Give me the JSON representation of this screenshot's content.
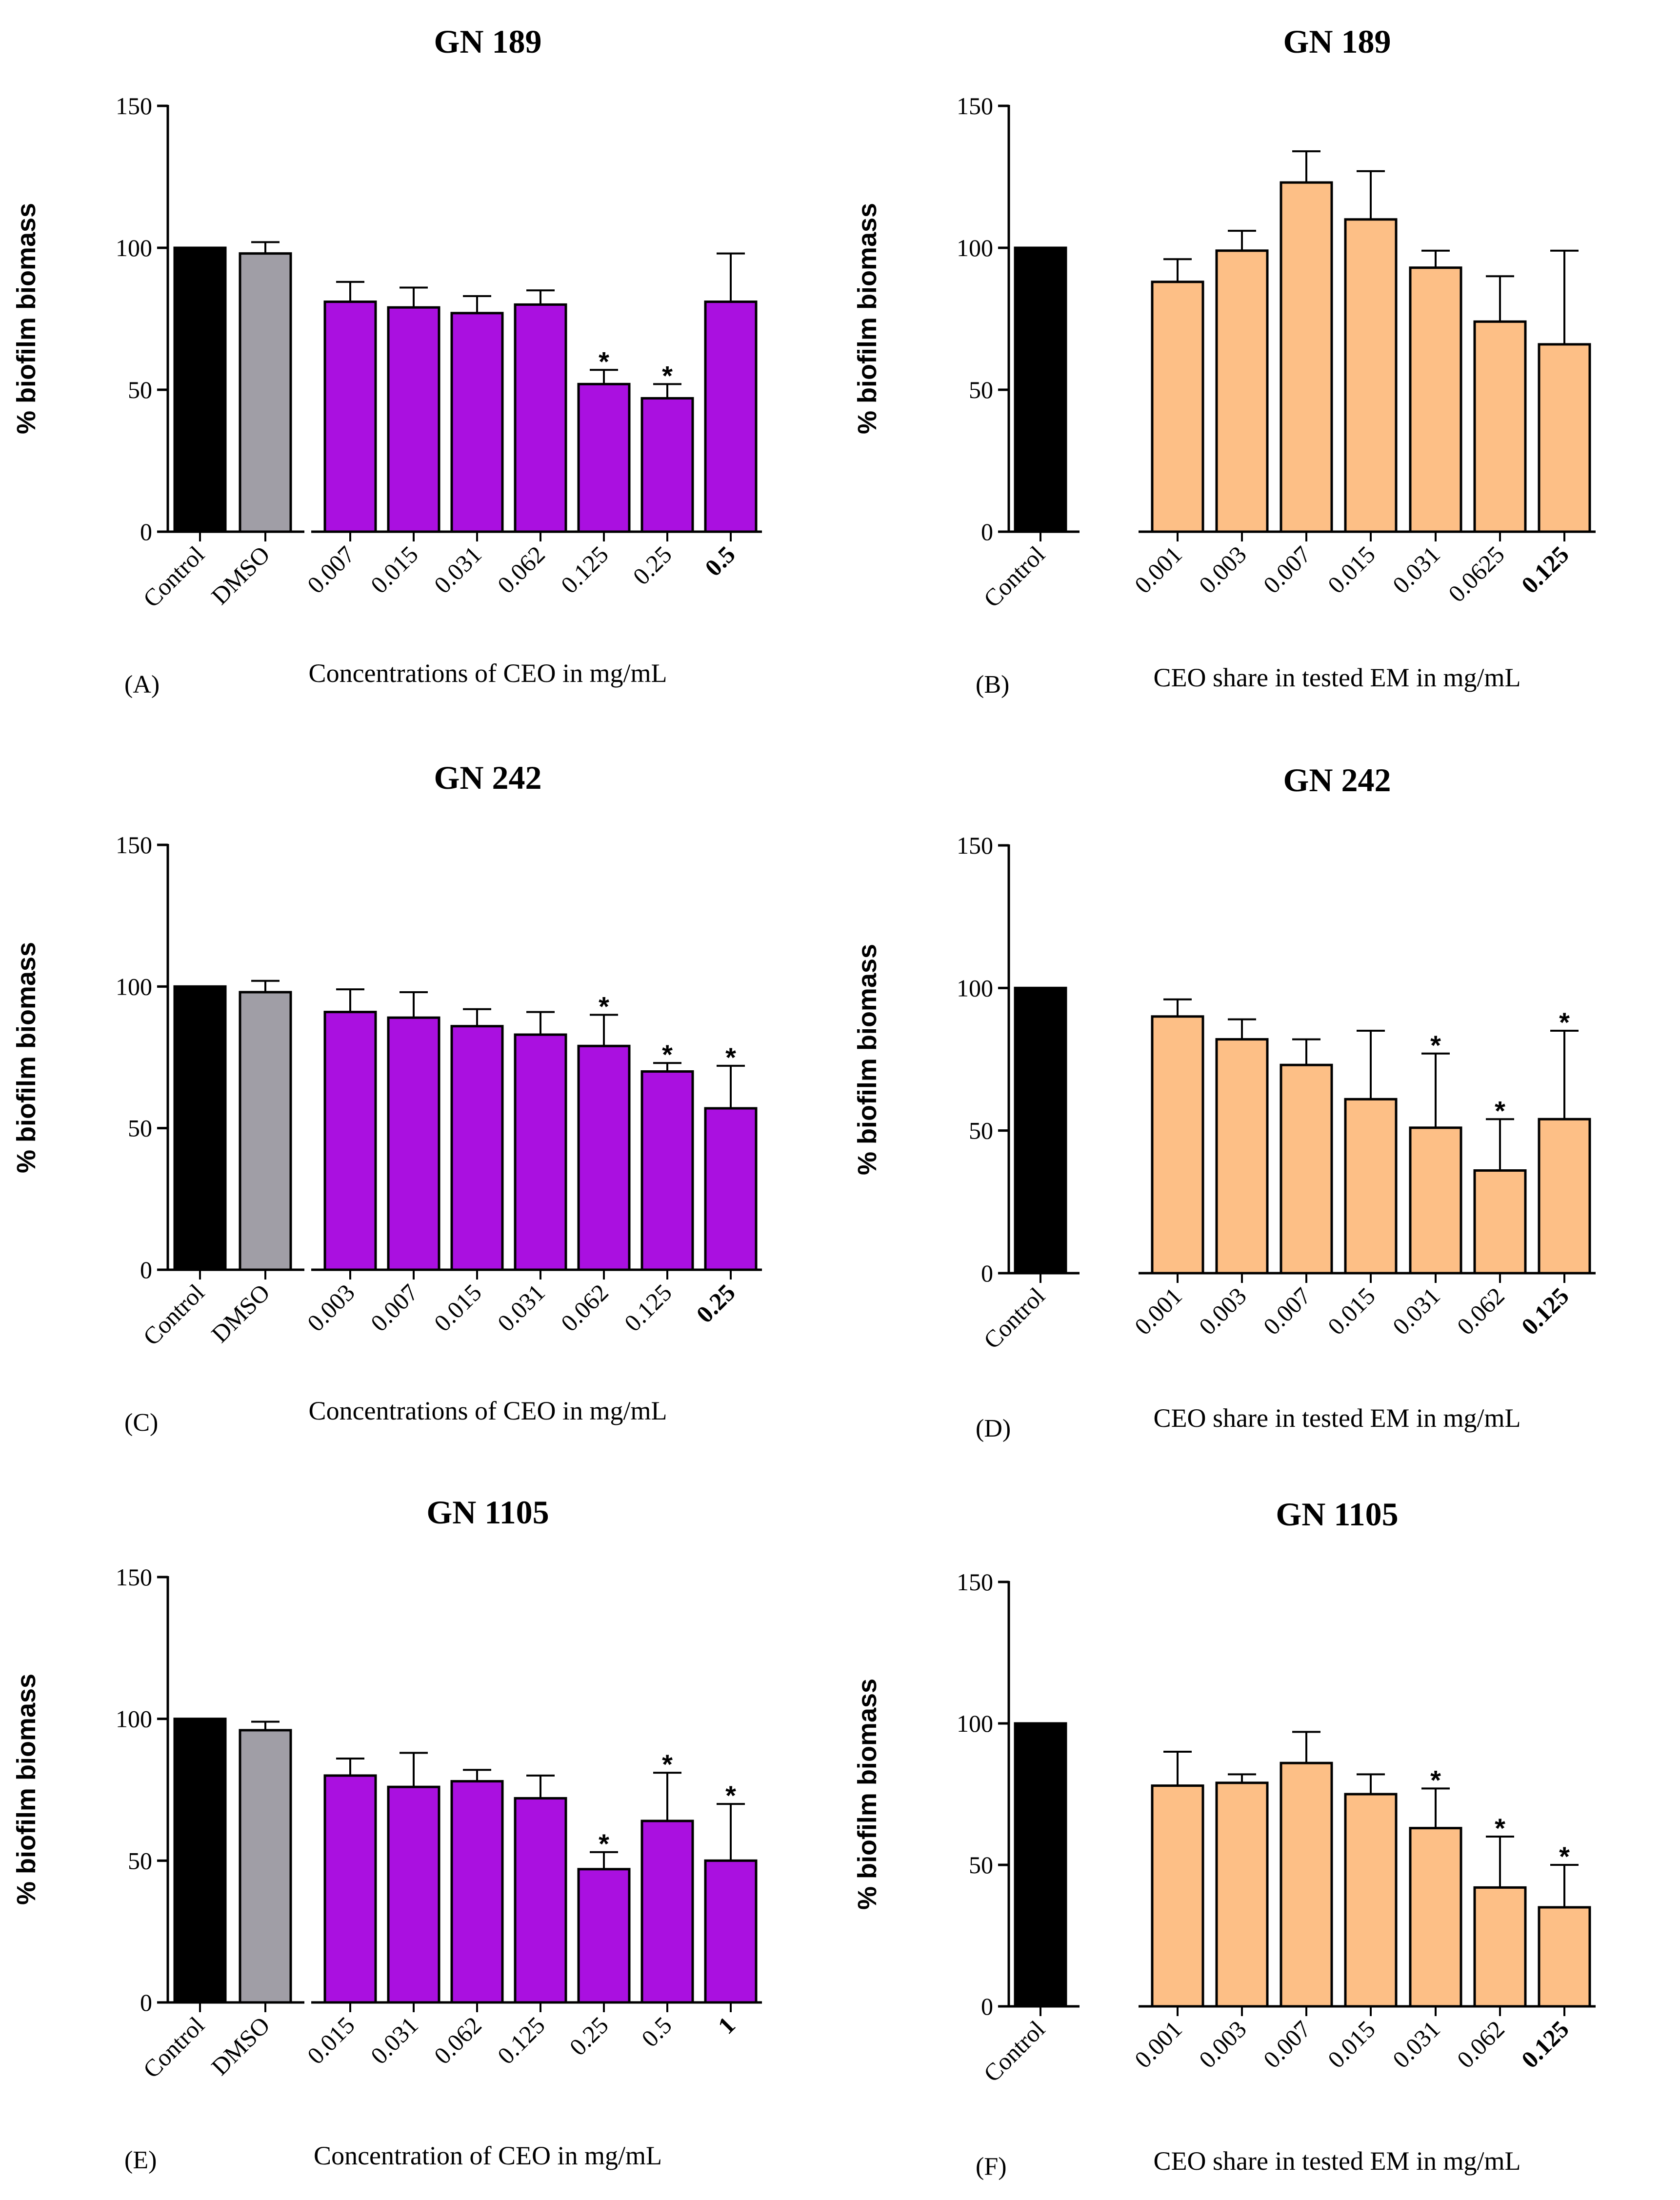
{
  "colors": {
    "control": "#000000",
    "dmso": "#a09ea6",
    "ceo": "#aa10e0",
    "em": "#fdbf86",
    "outline": "#000000"
  },
  "chart_data": [
    {
      "panel_label": "(A)",
      "type": "bar",
      "title": "GN 189",
      "ylabel": "% biofilm biomass",
      "xlabel": "Concentrations of CEO in mg/mL",
      "ylim": [
        0,
        150
      ],
      "yticks": [
        "0",
        "50",
        "100",
        "150"
      ],
      "categories": [
        "Control",
        "DMSO",
        "0.007",
        "0.015",
        "0.031",
        "0.062",
        "0.125",
        "0.25",
        "0.5"
      ],
      "bold_category": "0.5",
      "values": [
        100,
        98,
        81,
        79,
        77,
        80,
        52,
        47,
        81
      ],
      "errors": [
        0,
        4,
        7,
        7,
        6,
        5,
        5,
        5,
        17
      ],
      "significant": [
        "",
        "",
        "",
        "",
        "",
        "",
        "*",
        "*",
        ""
      ]
    },
    {
      "panel_label": "(B)",
      "type": "bar",
      "title": "GN 189",
      "ylabel": "% biofilm biomass",
      "xlabel": "CEO share in tested EM in mg/mL",
      "ylim": [
        0,
        150
      ],
      "yticks": [
        "0",
        "50",
        "100",
        "150"
      ],
      "categories": [
        "Control",
        "0.001",
        "0.003",
        "0.007",
        "0.015",
        "0.031",
        "0.0625",
        "0.125"
      ],
      "bold_category": "0.125",
      "values": [
        100,
        88,
        99,
        123,
        110,
        93,
        74,
        66
      ],
      "errors": [
        0,
        8,
        7,
        11,
        17,
        6,
        16,
        33
      ],
      "significant": [
        "",
        "",
        "",
        "",
        "",
        "",
        "",
        ""
      ]
    },
    {
      "panel_label": "(C)",
      "type": "bar",
      "title": "GN 242",
      "ylabel": "% biofilm biomass",
      "xlabel": "Concentrations of CEO  in mg/mL",
      "ylim": [
        0,
        150
      ],
      "yticks": [
        "0",
        "50",
        "100",
        "150"
      ],
      "categories": [
        "Control",
        "DMSO",
        "0.003",
        "0.007",
        "0.015",
        "0.031",
        "0.062",
        "0.125",
        "0.25"
      ],
      "bold_category": "0.25",
      "values": [
        100,
        98,
        91,
        89,
        86,
        83,
        79,
        70,
        57
      ],
      "errors": [
        0,
        4,
        8,
        9,
        6,
        8,
        11,
        3,
        15
      ],
      "significant": [
        "",
        "",
        "",
        "",
        "",
        "",
        "*",
        "*",
        "*"
      ]
    },
    {
      "panel_label": "(D)",
      "type": "bar",
      "title": "GN 242",
      "ylabel": "% biofilm biomass",
      "xlabel": "CEO share in tested EM in mg/mL",
      "ylim": [
        0,
        150
      ],
      "yticks": [
        "0",
        "50",
        "100",
        "150"
      ],
      "categories": [
        "Control",
        "0.001",
        "0.003",
        "0.007",
        "0.015",
        "0.031",
        "0.062",
        "0.125"
      ],
      "bold_category": "0.125",
      "values": [
        100,
        90,
        82,
        73,
        61,
        51,
        36,
        54
      ],
      "errors": [
        0,
        6,
        7,
        9,
        24,
        26,
        18,
        31
      ],
      "significant": [
        "",
        "",
        "",
        "",
        "",
        "*",
        "*",
        "*"
      ]
    },
    {
      "panel_label": "(E)",
      "type": "bar",
      "title": "GN 1105",
      "ylabel": "% biofilm biomass",
      "xlabel": "Concentration of CEO in mg/mL",
      "ylim": [
        0,
        150
      ],
      "yticks": [
        "0",
        "50",
        "100",
        "150"
      ],
      "categories": [
        "Control",
        "DMSO",
        "0.015",
        "0.031",
        "0.062",
        "0.125",
        "0.25",
        "0.5",
        "1"
      ],
      "bold_category": "1",
      "values": [
        100,
        96,
        80,
        76,
        78,
        72,
        47,
        64,
        50
      ],
      "errors": [
        0,
        3,
        6,
        12,
        4,
        8,
        6,
        17,
        20
      ],
      "significant": [
        "",
        "",
        "",
        "",
        "",
        "",
        "*",
        "*",
        "*"
      ]
    },
    {
      "panel_label": "(F)",
      "type": "bar",
      "title": "GN 1105",
      "ylabel": "% biofilm biomass",
      "xlabel": "CEO share in tested EM in mg/mL",
      "ylim": [
        0,
        150
      ],
      "yticks": [
        "0",
        "50",
        "100",
        "150"
      ],
      "categories": [
        "Control",
        "0.001",
        "0.003",
        "0.007",
        "0.015",
        "0.031",
        "0.062",
        "0.125"
      ],
      "bold_category": "0.125",
      "values": [
        100,
        78,
        79,
        86,
        75,
        63,
        42,
        35
      ],
      "errors": [
        0,
        12,
        3,
        11,
        7,
        14,
        18,
        15
      ],
      "significant": [
        "",
        "",
        "",
        "",
        "",
        "*",
        "*",
        "*"
      ]
    }
  ]
}
